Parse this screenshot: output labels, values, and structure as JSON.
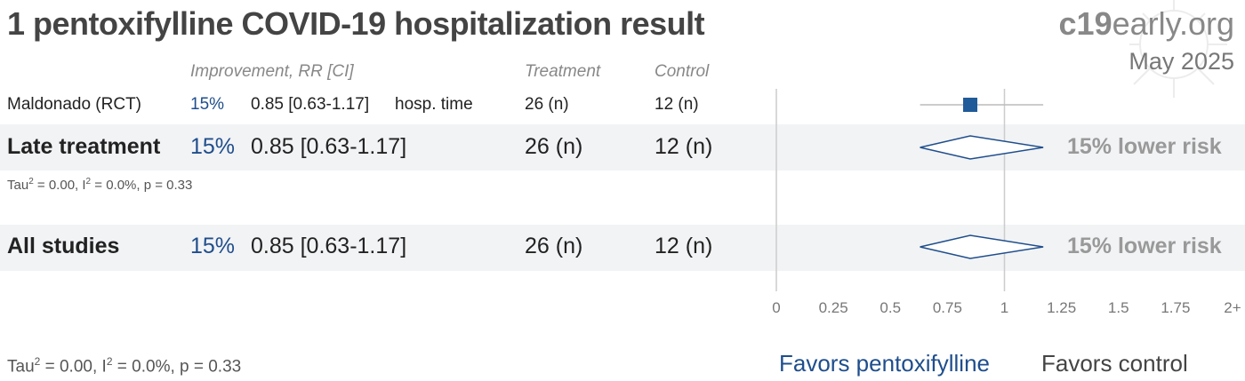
{
  "title": "1 pentoxifylline COVID-19 hospitalization result",
  "brand": {
    "bold": "c19",
    "rest": "early.org"
  },
  "date": "May 2025",
  "headers": {
    "improvement": "Improvement, RR [CI]",
    "treatment": "Treatment",
    "control": "Control"
  },
  "chart_data": {
    "type": "forest",
    "axis": {
      "ticks": [
        "0",
        "0.25",
        "0.5",
        "0.75",
        "1",
        "1.25",
        "1.5",
        "1.75",
        "2+"
      ],
      "range": [
        0,
        2
      ],
      "reference": 1
    },
    "studies": [
      {
        "name": "Maldonado (RCT)",
        "improvement": "15%",
        "rr_text": "0.85 [0.63-1.17]",
        "outcome": "hosp. time",
        "treatment": "26 (n)",
        "control": "12 (n)",
        "rr": 0.85,
        "ci": [
          0.63,
          1.17
        ]
      }
    ],
    "groups": [
      {
        "name": "Late treatment",
        "improvement": "15%",
        "rr_text": "0.85 [0.63-1.17]",
        "treatment": "26 (n)",
        "control": "12 (n)",
        "risk": "15% lower risk",
        "rr": 0.85,
        "ci": [
          0.63,
          1.17
        ],
        "stats": {
          "tau": "Tau",
          "tau_rest": " = 0.00, I",
          "i_rest": " = 0.0%, p = 0.33"
        }
      },
      {
        "name": "All studies",
        "improvement": "15%",
        "rr_text": "0.85 [0.63-1.17]",
        "treatment": "26 (n)",
        "control": "12 (n)",
        "risk": "15% lower risk",
        "rr": 0.85,
        "ci": [
          0.63,
          1.17
        ]
      }
    ],
    "footer_stats": {
      "tau": "Tau",
      "tau_rest": " = 0.00, I",
      "i_rest": " = 0.0%, p = 0.33"
    },
    "favors": {
      "left": "Favors pentoxifylline",
      "right": "Favors control"
    },
    "colors": {
      "accent": "#1f4e8c",
      "marker": "#1f5a99",
      "ref_line": "#cccccc",
      "band": "#f2f3f5"
    }
  }
}
